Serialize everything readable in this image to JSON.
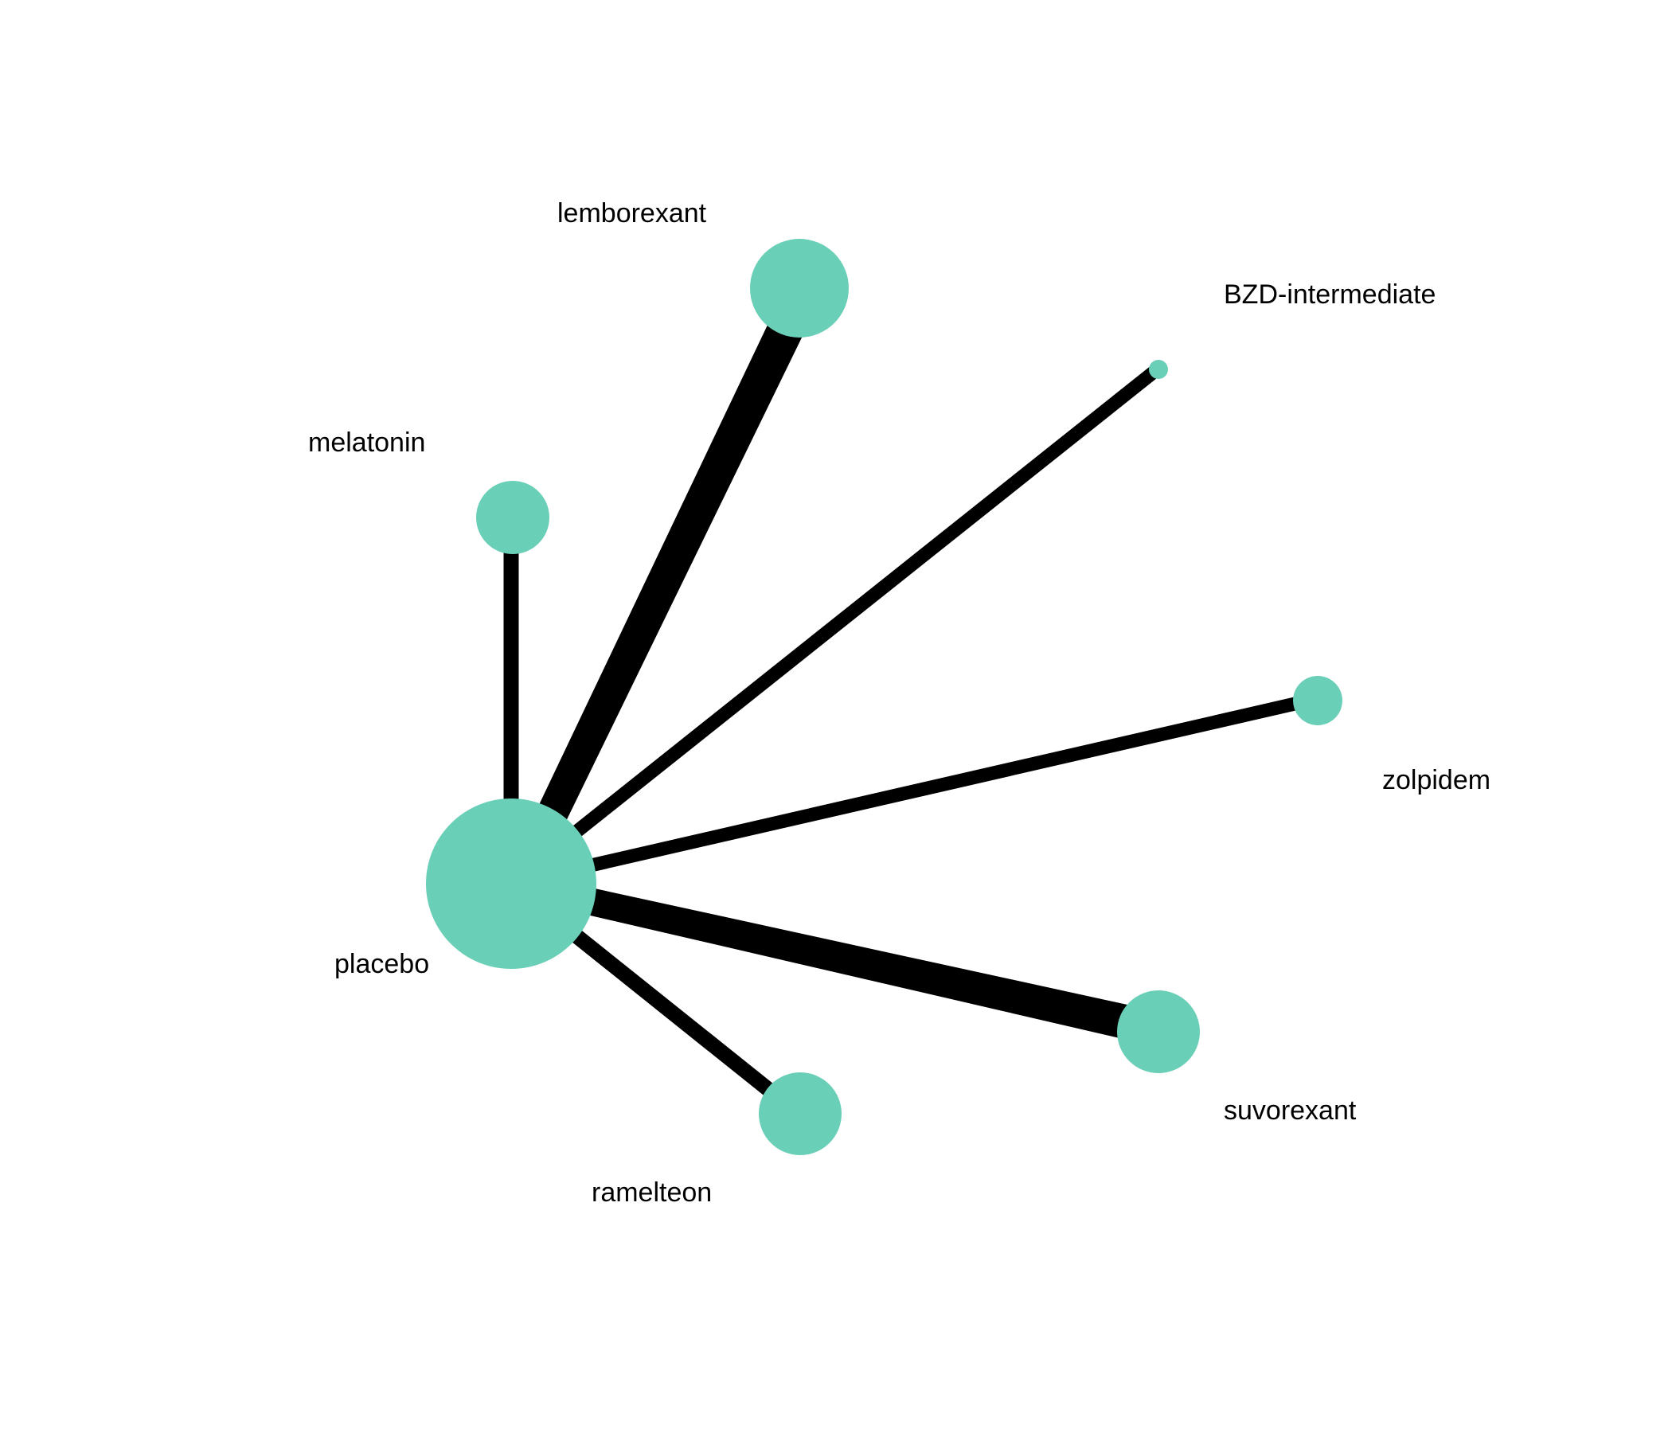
{
  "diagram": {
    "type": "network",
    "node_color": "#6ACFB7",
    "edge_color": "#000000",
    "nodes": [
      {
        "id": "placebo",
        "label": "placebo",
        "size": "largest"
      },
      {
        "id": "lemborexant",
        "label": "lemborexant",
        "size": "large"
      },
      {
        "id": "BZD-intermediate",
        "label": "BZD-intermediate",
        "size": "tiny"
      },
      {
        "id": "melatonin",
        "label": "melatonin",
        "size": "medium"
      },
      {
        "id": "zolpidem",
        "label": "zolpidem",
        "size": "small"
      },
      {
        "id": "suvorexant",
        "label": "suvorexant",
        "size": "large"
      },
      {
        "id": "ramelteon",
        "label": "ramelteon",
        "size": "large"
      }
    ],
    "edges": [
      {
        "from": "placebo",
        "to": "melatonin",
        "weight": "medium"
      },
      {
        "from": "placebo",
        "to": "lemborexant",
        "weight": "thick"
      },
      {
        "from": "placebo",
        "to": "BZD-intermediate",
        "weight": "medium"
      },
      {
        "from": "placebo",
        "to": "zolpidem",
        "weight": "medium"
      },
      {
        "from": "placebo",
        "to": "suvorexant",
        "weight": "thick"
      },
      {
        "from": "placebo",
        "to": "ramelteon",
        "weight": "medium"
      }
    ]
  }
}
